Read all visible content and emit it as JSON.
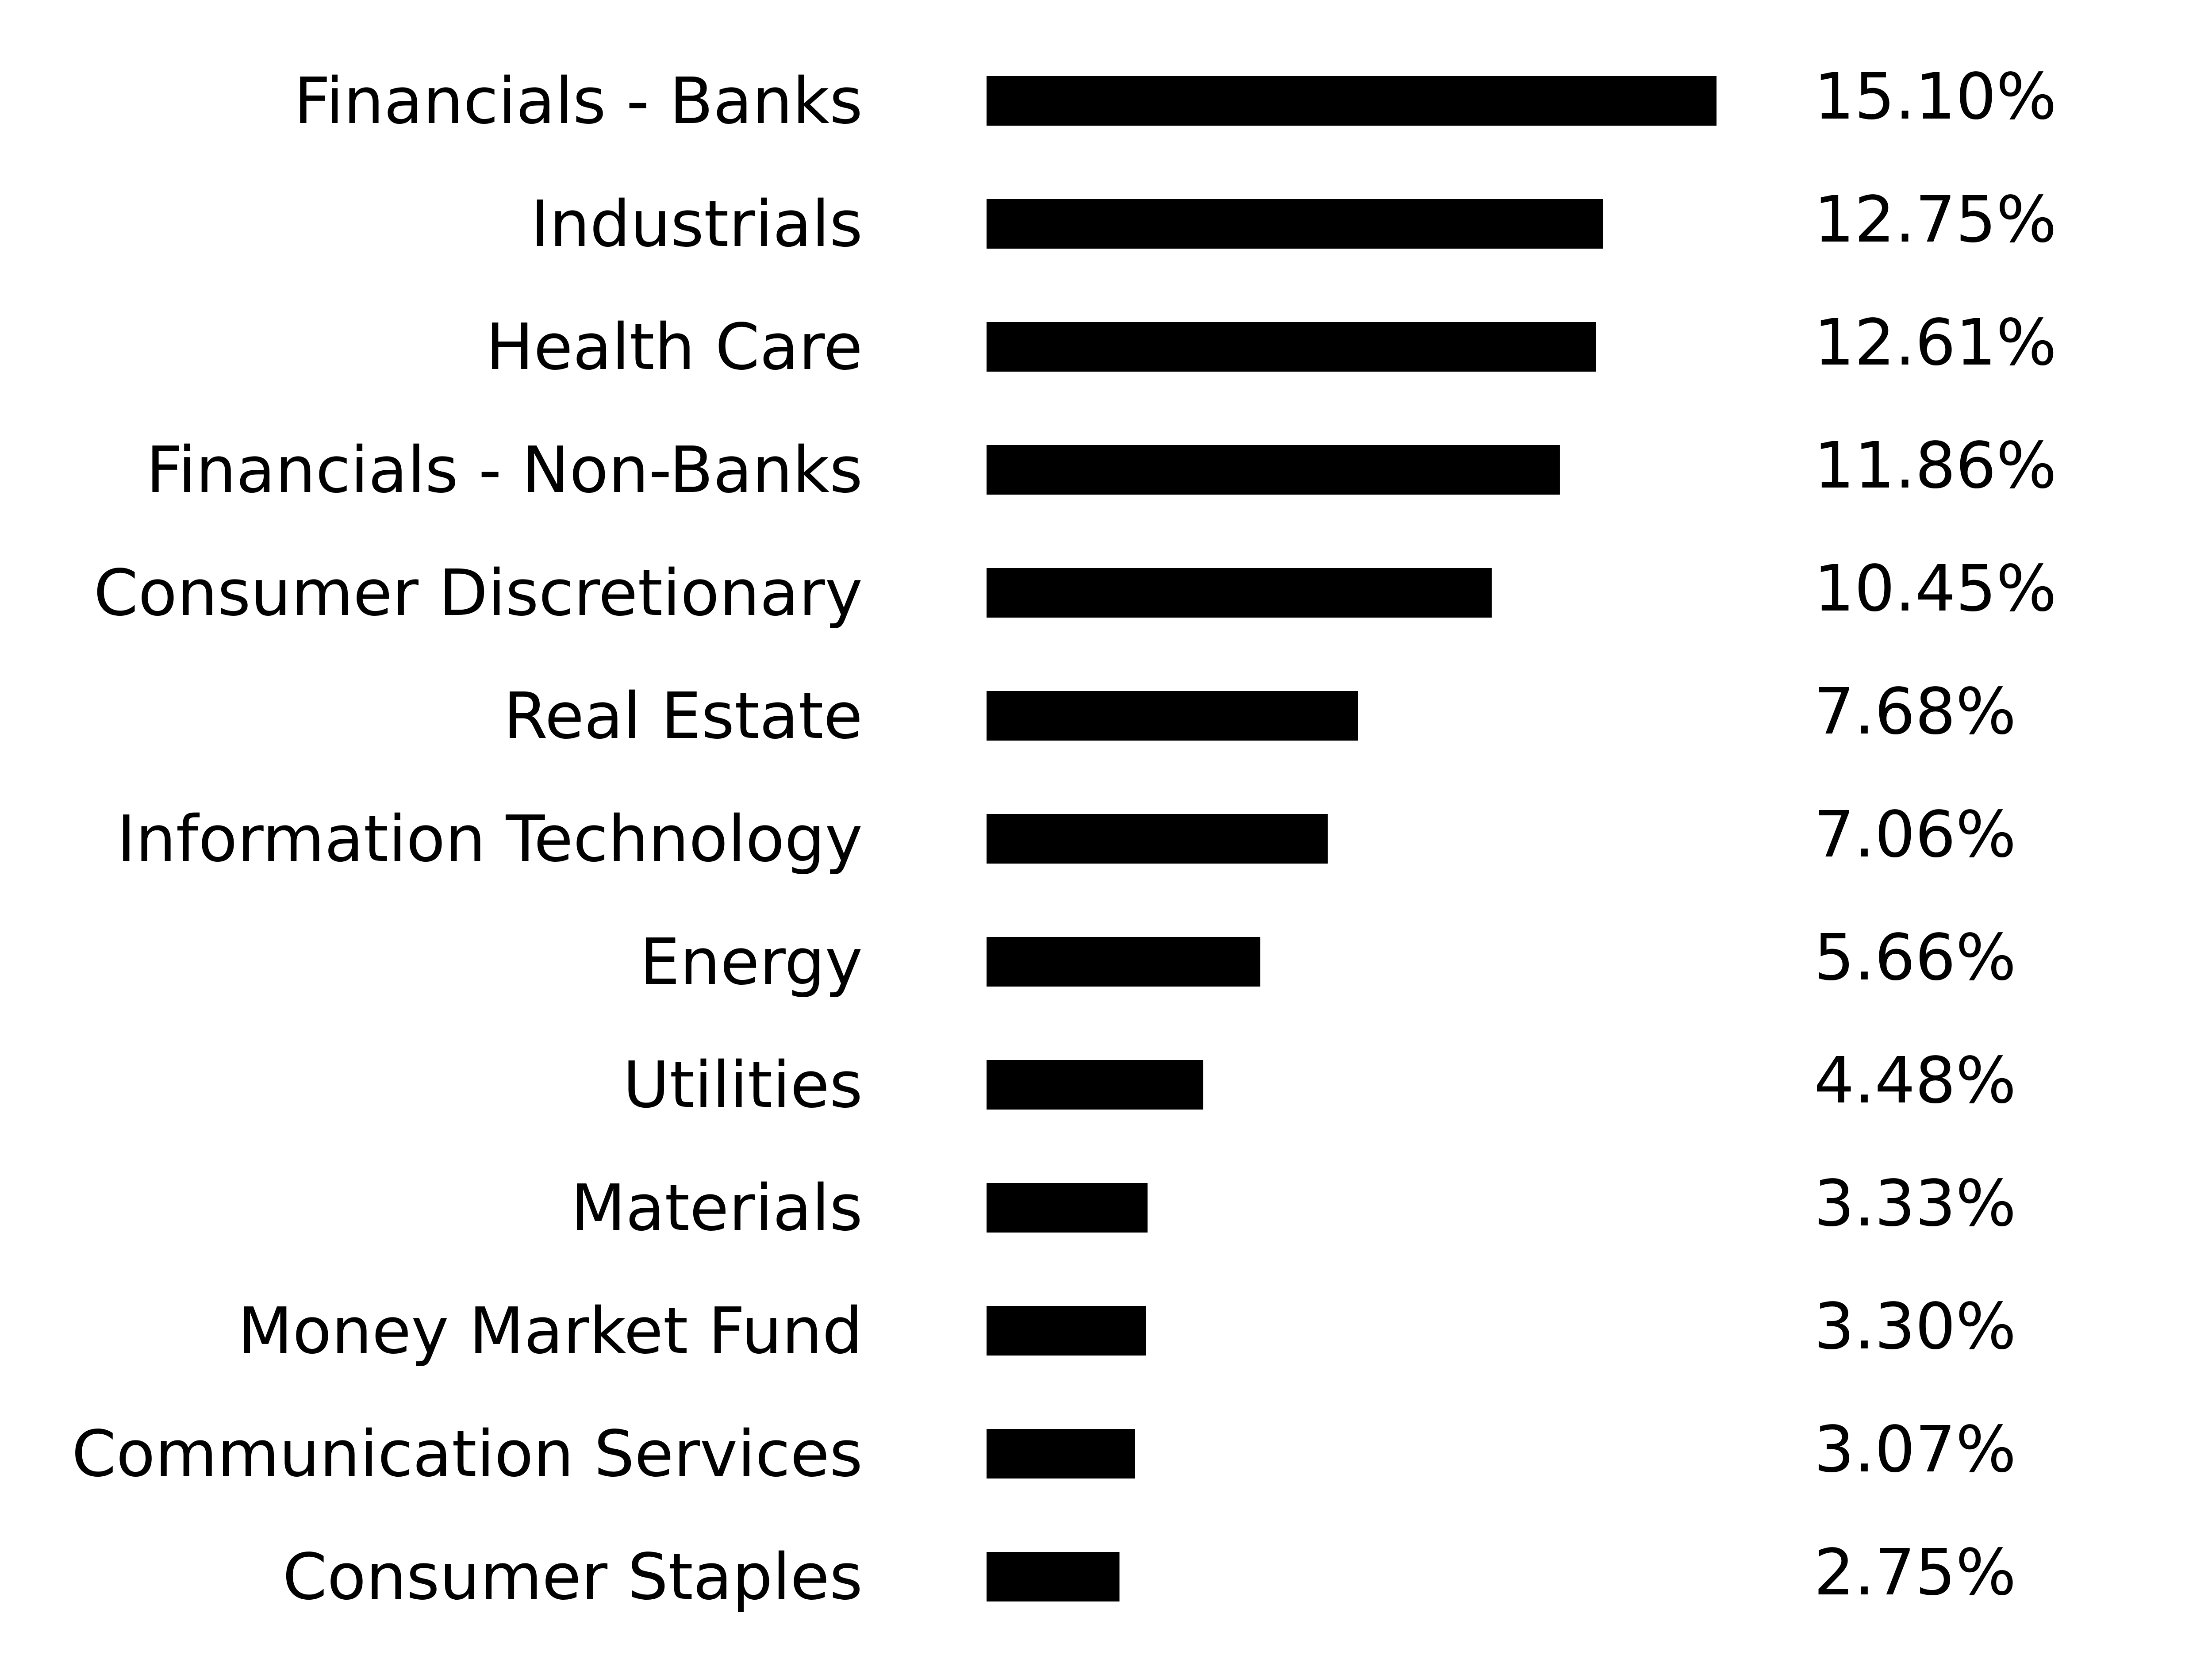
{
  "chart_data": {
    "type": "bar",
    "orientation": "horizontal",
    "categories": [
      "Financials - Banks",
      "Industrials",
      "Health Care",
      "Financials - Non-Banks",
      "Consumer Discretionary",
      "Real Estate",
      "Information Technology",
      "Energy",
      "Utilities",
      "Materials",
      "Money Market Fund",
      "Communication Services",
      "Consumer Staples"
    ],
    "values": [
      15.1,
      12.75,
      12.61,
      11.86,
      10.45,
      7.68,
      7.06,
      5.66,
      4.48,
      3.33,
      3.3,
      3.07,
      2.75
    ],
    "value_labels": [
      "15.10%",
      "12.75%",
      "12.61%",
      "11.86%",
      "10.45%",
      "7.68%",
      "7.06%",
      "5.66%",
      "4.48%",
      "3.33%",
      "3.30%",
      "3.07%",
      "2.75%"
    ],
    "bar_color": "#000000",
    "title": "",
    "xlabel": "",
    "ylabel": "",
    "xlim": [
      0,
      15.1
    ],
    "grid": false,
    "legend": "none"
  }
}
